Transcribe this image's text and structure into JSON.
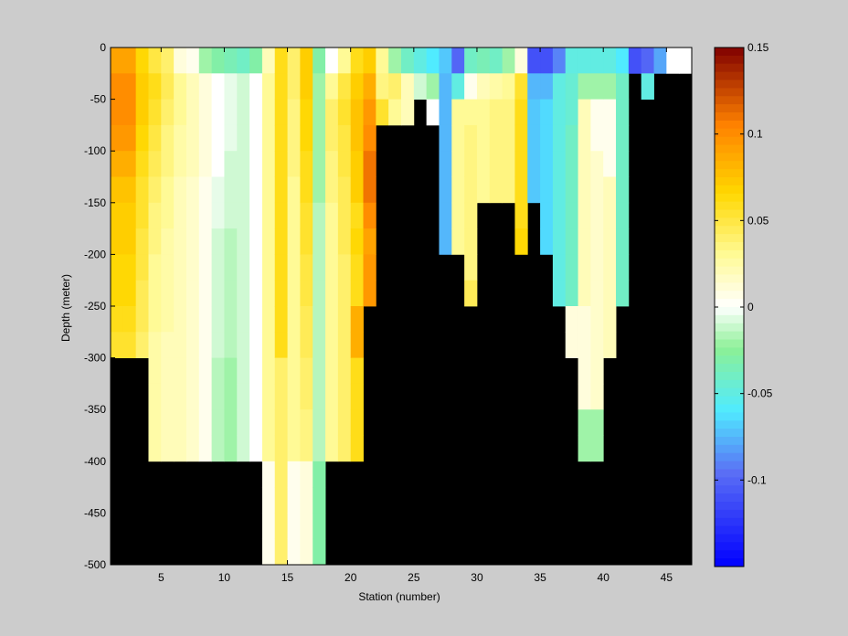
{
  "chart_data": {
    "type": "heatmap",
    "title": "",
    "xlabel": "Station (number)",
    "ylabel": "Depth (meter)",
    "xlim": [
      1,
      47
    ],
    "ylim": [
      -500,
      0
    ],
    "xticks": [
      "5",
      "10",
      "15",
      "20",
      "25",
      "30",
      "35",
      "40",
      "45"
    ],
    "yticks": [
      "0",
      "-50",
      "-100",
      "-150",
      "-200",
      "-250",
      "-300",
      "-350",
      "-400",
      "-450",
      "-500"
    ],
    "colorbar": {
      "limits": [
        -0.15,
        0.15
      ],
      "ticks": [
        "0.15",
        "0.1",
        "0.05",
        "0",
        "-0.05",
        "-0.1"
      ],
      "colormap": "jet-white-center"
    },
    "no_data_color": "#000000",
    "station_max_depth_m": [
      300,
      300,
      300,
      400,
      400,
      400,
      400,
      400,
      400,
      400,
      400,
      400,
      500,
      500,
      500,
      500,
      500,
      400,
      400,
      400,
      250,
      75,
      75,
      75,
      50,
      75,
      200,
      200,
      250,
      150,
      150,
      150,
      200,
      150,
      200,
      250,
      300,
      400,
      400,
      300,
      250,
      25,
      50,
      25,
      25,
      25
    ],
    "depth_bin_m": 25,
    "station_profiles": [
      [
        0.09,
        0.1,
        0.1,
        0.095,
        0.085,
        0.075,
        0.07,
        0.07,
        0.065,
        0.065,
        0.06,
        0.055
      ],
      [
        0.09,
        0.1,
        0.1,
        0.095,
        0.085,
        0.075,
        0.07,
        0.07,
        0.065,
        0.065,
        0.06,
        0.055
      ],
      [
        0.065,
        0.07,
        0.07,
        0.065,
        0.06,
        0.055,
        0.055,
        0.05,
        0.05,
        0.045,
        0.045,
        0.04
      ],
      [
        0.05,
        0.06,
        0.055,
        0.05,
        0.045,
        0.04,
        0.035,
        0.035,
        0.03,
        0.03,
        0.03,
        0.025,
        0.025,
        0.025,
        0.025,
        0.025
      ],
      [
        0.04,
        0.045,
        0.04,
        0.035,
        0.035,
        0.03,
        0.03,
        0.025,
        0.025,
        0.025,
        0.025,
        0.02,
        0.02,
        0.02,
        0.02,
        0.02
      ],
      [
        0.01,
        0.03,
        0.03,
        0.025,
        0.025,
        0.02,
        0.02,
        0.02,
        0.02,
        0.02,
        0.02,
        0.02,
        0.02,
        0.02,
        0.02,
        0.02
      ],
      [
        0.005,
        0.02,
        0.02,
        0.02,
        0.02,
        0.015,
        0.015,
        0.015,
        0.015,
        0.015,
        0.015,
        0.015,
        0.015,
        0.015,
        0.015,
        0.015
      ],
      [
        -0.02,
        0.01,
        0.01,
        0.01,
        0.01,
        0.005,
        0.005,
        0.005,
        0.005,
        0.005,
        0.005,
        0.005,
        0.005,
        0.005,
        0.005,
        0.005
      ],
      [
        -0.03,
        0.0,
        0.0,
        0.0,
        0.0,
        -0.005,
        -0.005,
        -0.01,
        -0.01,
        -0.01,
        -0.01,
        -0.01,
        -0.015,
        -0.015,
        -0.015,
        -0.015
      ],
      [
        -0.035,
        -0.005,
        -0.005,
        -0.005,
        -0.01,
        -0.01,
        -0.01,
        -0.015,
        -0.015,
        -0.015,
        -0.015,
        -0.015,
        -0.02,
        -0.02,
        -0.02,
        -0.02
      ],
      [
        -0.04,
        -0.01,
        -0.01,
        -0.01,
        -0.01,
        -0.01,
        -0.01,
        -0.01,
        -0.01,
        -0.01,
        -0.01,
        -0.01,
        -0.01,
        -0.01,
        -0.01,
        -0.01
      ],
      [
        -0.03,
        0.0,
        0.0,
        0.0,
        0.0,
        0.0,
        0.0,
        0.0,
        0.0,
        0.0,
        0.0,
        0.0,
        0.0,
        0.0,
        0.0,
        0.0
      ],
      [
        0.02,
        0.03,
        0.03,
        0.03,
        0.03,
        0.03,
        0.03,
        0.03,
        0.03,
        0.03,
        0.03,
        0.03,
        0.03,
        0.03,
        0.03,
        0.03,
        0.005,
        0.005,
        0.005,
        0.005
      ],
      [
        0.06,
        0.06,
        0.06,
        0.06,
        0.06,
        0.06,
        0.06,
        0.06,
        0.06,
        0.06,
        0.06,
        0.06,
        0.04,
        0.04,
        0.04,
        0.04,
        0.04,
        0.04,
        0.04,
        0.04
      ],
      [
        0.04,
        0.04,
        0.035,
        0.035,
        0.035,
        0.03,
        0.03,
        0.03,
        0.03,
        0.03,
        0.03,
        0.03,
        0.03,
        0.03,
        0.03,
        0.03,
        0.005,
        0.005,
        0.005,
        0.005
      ],
      [
        0.07,
        0.07,
        0.065,
        0.065,
        0.06,
        0.06,
        0.055,
        0.055,
        0.05,
        0.05,
        0.045,
        0.045,
        0.04,
        0.04,
        0.035,
        0.035,
        0.01,
        0.01,
        0.01,
        0.01
      ],
      [
        -0.03,
        -0.02,
        -0.02,
        -0.02,
        -0.02,
        -0.02,
        -0.015,
        -0.015,
        -0.015,
        -0.015,
        -0.015,
        -0.015,
        -0.015,
        -0.015,
        -0.015,
        -0.015,
        -0.03,
        -0.03,
        -0.03,
        -0.03
      ],
      [
        0.0,
        0.03,
        0.04,
        0.04,
        0.035,
        0.035,
        0.03,
        0.03,
        0.03,
        0.03,
        0.03,
        0.03,
        0.03,
        0.03,
        0.03,
        0.03
      ],
      [
        0.03,
        0.05,
        0.055,
        0.05,
        0.05,
        0.045,
        0.045,
        0.045,
        0.04,
        0.04,
        0.04,
        0.04,
        0.04,
        0.04,
        0.04,
        0.04
      ],
      [
        0.06,
        0.07,
        0.075,
        0.075,
        0.07,
        0.07,
        0.06,
        0.065,
        0.06,
        0.06,
        0.085,
        0.085,
        0.06,
        0.06,
        0.06,
        0.06
      ],
      [
        0.07,
        0.085,
        0.095,
        0.1,
        0.11,
        0.11,
        0.1,
        0.09,
        0.095,
        0.095
      ],
      [
        0.03,
        0.035,
        0.055
      ],
      [
        -0.02,
        0.04,
        0.03
      ],
      [
        -0.04,
        0.02,
        0.02
      ],
      [
        -0.05,
        -0.01
      ],
      [
        -0.06,
        -0.02,
        0.0
      ],
      [
        -0.07,
        -0.075,
        -0.075,
        -0.075,
        -0.075,
        -0.075,
        -0.075,
        -0.075
      ],
      [
        -0.1,
        -0.05,
        0.03,
        0.03,
        0.03,
        0.03,
        0.03,
        0.03
      ],
      [
        -0.04,
        0.005,
        0.03,
        0.035,
        0.035,
        0.035,
        0.035,
        0.035,
        0.035,
        0.045
      ],
      [
        -0.035,
        0.02,
        0.03,
        0.03,
        0.03,
        0.03
      ],
      [
        -0.04,
        0.025,
        0.035,
        0.035,
        0.035,
        0.035
      ],
      [
        -0.02,
        0.03,
        0.035,
        0.035,
        0.035,
        0.035
      ],
      [
        0.01,
        0.055,
        0.06,
        0.06,
        0.06,
        0.06,
        0.06,
        0.065
      ],
      [
        -0.11,
        -0.075,
        -0.07,
        -0.07,
        -0.07,
        -0.07
      ],
      [
        -0.11,
        -0.075,
        -0.065,
        -0.065,
        -0.065,
        -0.065,
        -0.065,
        -0.065
      ],
      [
        -0.09,
        -0.05,
        -0.05,
        -0.05,
        -0.05,
        -0.05,
        -0.05,
        -0.05,
        -0.05,
        -0.05
      ],
      [
        -0.05,
        -0.045,
        -0.045,
        -0.04,
        -0.04,
        -0.04,
        -0.04,
        -0.04,
        -0.04,
        -0.04,
        0.01,
        0.01
      ],
      [
        -0.05,
        -0.02,
        0.02,
        0.02,
        0.02,
        0.02,
        0.02,
        0.02,
        0.02,
        0.02,
        0.01,
        0.01,
        0.01,
        0.01,
        -0.02,
        -0.02
      ],
      [
        -0.05,
        -0.02,
        0.005,
        0.005,
        0.015,
        0.015,
        0.015,
        0.015,
        0.015,
        0.015,
        0.015,
        0.015,
        0.015,
        0.015,
        -0.02,
        -0.02
      ],
      [
        -0.05,
        -0.02,
        0.005,
        0.005,
        0.005,
        0.02,
        0.02,
        0.02,
        0.02,
        0.02,
        0.02,
        0.02
      ],
      [
        -0.06,
        -0.04,
        -0.04,
        -0.04,
        -0.04,
        -0.04,
        -0.04,
        -0.04,
        -0.04,
        -0.04
      ],
      [
        -0.11
      ],
      [
        -0.1,
        -0.05
      ],
      [
        -0.08
      ],
      [
        0.0
      ],
      [
        0.0
      ]
    ]
  }
}
